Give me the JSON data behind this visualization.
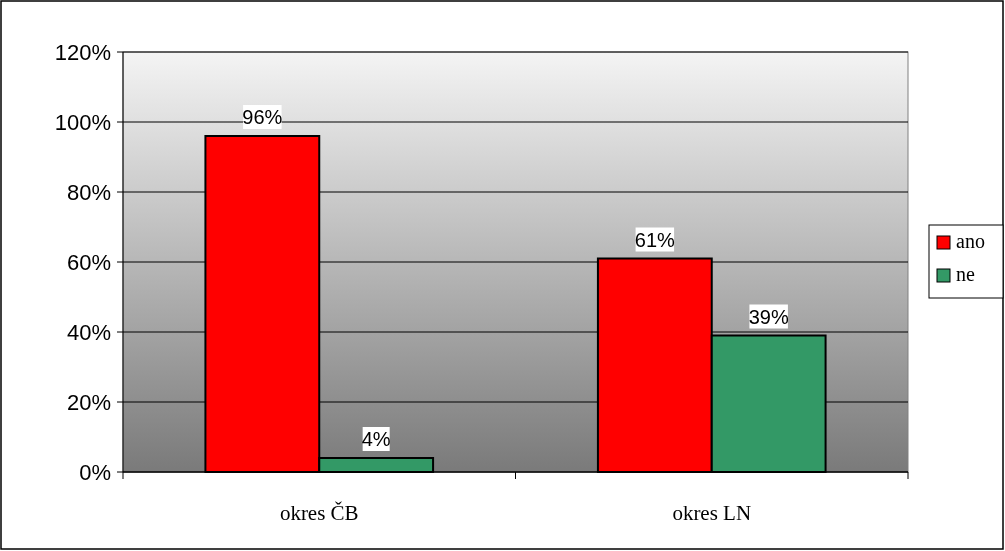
{
  "chart_data": {
    "type": "bar",
    "categories": [
      "okres ČB",
      "okres LN"
    ],
    "series": [
      {
        "name": "ano",
        "color": "#ff0000",
        "values": [
          96,
          61
        ],
        "value_labels": [
          "96%",
          "61%"
        ]
      },
      {
        "name": "ne",
        "color": "#339966",
        "values": [
          4,
          39
        ],
        "value_labels": [
          "4%",
          "39%"
        ]
      }
    ],
    "ylim": [
      0,
      120
    ],
    "yticks": [
      {
        "value": 0,
        "label": "0%"
      },
      {
        "value": 20,
        "label": "20%"
      },
      {
        "value": 40,
        "label": "40%"
      },
      {
        "value": 60,
        "label": "60%"
      },
      {
        "value": 80,
        "label": "80%"
      },
      {
        "value": 100,
        "label": "100%"
      },
      {
        "value": 120,
        "label": "120%"
      }
    ],
    "grid": "y",
    "legend": "right"
  }
}
